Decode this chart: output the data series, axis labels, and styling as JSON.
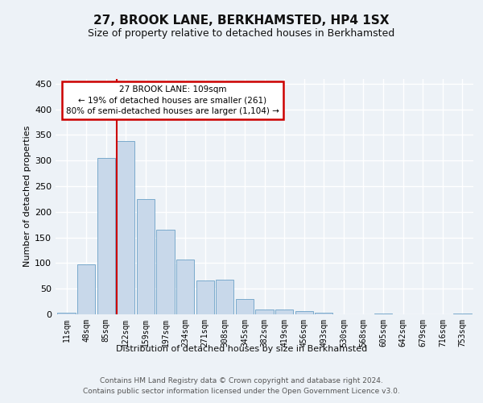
{
  "title": "27, BROOK LANE, BERKHAMSTED, HP4 1SX",
  "subtitle": "Size of property relative to detached houses in Berkhamsted",
  "xlabel": "Distribution of detached houses by size in Berkhamsted",
  "ylabel": "Number of detached properties",
  "bar_color": "#c8d8ea",
  "bar_edge_color": "#7aaacc",
  "categories": [
    "11sqm",
    "48sqm",
    "85sqm",
    "122sqm",
    "159sqm",
    "197sqm",
    "234sqm",
    "271sqm",
    "308sqm",
    "345sqm",
    "382sqm",
    "419sqm",
    "456sqm",
    "493sqm",
    "530sqm",
    "568sqm",
    "605sqm",
    "642sqm",
    "679sqm",
    "716sqm",
    "753sqm"
  ],
  "values": [
    3,
    98,
    305,
    338,
    225,
    165,
    107,
    66,
    67,
    30,
    10,
    10,
    6,
    3,
    0,
    0,
    2,
    0,
    0,
    0,
    2
  ],
  "ylim": [
    0,
    460
  ],
  "yticks": [
    0,
    50,
    100,
    150,
    200,
    250,
    300,
    350,
    400,
    450
  ],
  "vline_x_index": 2.55,
  "annotation_text": "27 BROOK LANE: 109sqm\n← 19% of detached houses are smaller (261)\n80% of semi-detached houses are larger (1,104) →",
  "annotation_box_color": "#ffffff",
  "annotation_box_edge": "#cc0000",
  "vline_color": "#cc0000",
  "footer1": "Contains HM Land Registry data © Crown copyright and database right 2024.",
  "footer2": "Contains public sector information licensed under the Open Government Licence v3.0.",
  "background_color": "#edf2f7",
  "grid_color": "#ffffff",
  "title_fontsize": 11,
  "subtitle_fontsize": 9,
  "ylabel_fontsize": 8,
  "xlabel_fontsize": 8,
  "tick_fontsize": 7,
  "annotation_fontsize": 7.5,
  "footer_fontsize": 6.5
}
